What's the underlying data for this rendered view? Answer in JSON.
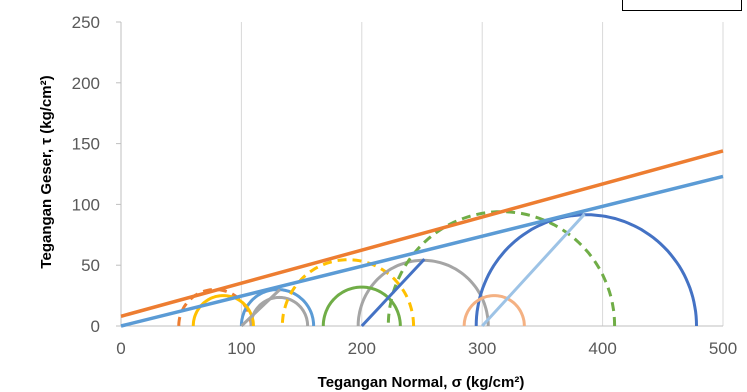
{
  "chart_data": {
    "type": "line",
    "title": "",
    "xlabel": "Tegangan Normal, σ (kg/cm²)",
    "ylabel": "Tegangan Geser, τ (kg/cm²)",
    "xlim": [
      0,
      500
    ],
    "ylim": [
      0,
      250
    ],
    "x_ticks": [
      "0",
      "100",
      "200",
      "300",
      "400",
      "500"
    ],
    "y_ticks": [
      "0",
      "50",
      "100",
      "150",
      "200",
      "250"
    ],
    "grid": "vertical",
    "legend": "top-right",
    "envelopes": [
      {
        "x": [
          0,
          500
        ],
        "y": [
          8,
          144
        ],
        "color": "#ED7D31",
        "style": "solid"
      },
      {
        "x": [
          0,
          500
        ],
        "y": [
          0,
          123
        ],
        "color": "#5B9BD5",
        "style": "solid"
      }
    ],
    "circles": [
      {
        "s1": 48,
        "s3": 108,
        "color": "#ED7D31",
        "style": "dashed"
      },
      {
        "s1": 100,
        "s3": 160,
        "color": "#5B9BD5",
        "style": "solid"
      },
      {
        "s1": 108,
        "s3": 155,
        "color": "#A5A5A5",
        "style": "solid"
      },
      {
        "s1": 60,
        "s3": 110,
        "color": "#FFC000",
        "style": "solid"
      },
      {
        "s1": 134,
        "s3": 243,
        "color": "#FFC000",
        "style": "dashed"
      },
      {
        "s1": 197,
        "s3": 305,
        "color": "#A5A5A5",
        "style": "solid"
      },
      {
        "s1": 168,
        "s3": 232,
        "color": "#70AD47",
        "style": "solid"
      },
      {
        "s1": 222,
        "s3": 410,
        "color": "#70AD47",
        "style": "dashed"
      },
      {
        "s1": 295,
        "s3": 478,
        "color": "#4472C4",
        "style": "solid"
      },
      {
        "s1": 285,
        "s3": 335,
        "color": "#F4B183",
        "style": "solid"
      }
    ],
    "stress_paths": [
      {
        "x": [
          100,
          132
        ],
        "y": [
          0,
          30
        ],
        "color": "#A5A5A5"
      },
      {
        "x": [
          200,
          252
        ],
        "y": [
          0,
          55
        ],
        "color": "#4472C4"
      },
      {
        "x": [
          300,
          385
        ],
        "y": [
          0,
          92
        ],
        "color": "#9DC3E6"
      }
    ]
  }
}
